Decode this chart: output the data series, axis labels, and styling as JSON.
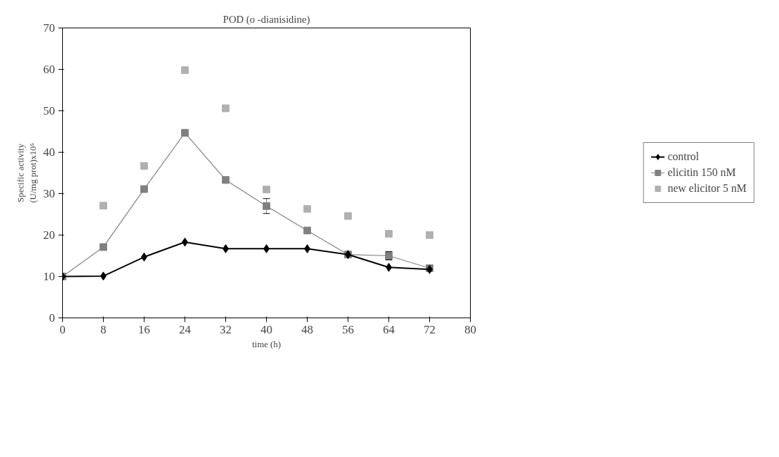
{
  "chart_data": {
    "type": "line",
    "title": "POD (o -dianisidine)",
    "xlabel": "time (h)",
    "ylabel": "Specific activity\n(U/mg prot)x10⁵",
    "x": [
      0,
      8,
      16,
      24,
      32,
      40,
      48,
      56,
      64,
      72
    ],
    "series": [
      {
        "name": "control",
        "color": "#000000",
        "marker": "diamond",
        "values": [
          10,
          10.1,
          14.7,
          18.3,
          16.7,
          16.7,
          16.7,
          15.3,
          12.2,
          11.7
        ]
      },
      {
        "name": "elicitin 150 nM",
        "color": "#808080",
        "marker": "square",
        "values": [
          10,
          17.1,
          31.1,
          44.7,
          33.3,
          27,
          21.1,
          15.3,
          15,
          12
        ],
        "errors": [
          null,
          null,
          null,
          null,
          null,
          1.8,
          null,
          null,
          1,
          null
        ]
      },
      {
        "name": "new elicitor 5 nM",
        "type": "scatter",
        "color": "#b0b0b0",
        "marker": "square",
        "values": [
          null,
          27.1,
          36.7,
          59.8,
          50.6,
          31,
          26.3,
          24.6,
          20.3,
          20
        ]
      }
    ],
    "xlim": [
      0,
      80
    ],
    "xticks": [
      0,
      8,
      16,
      24,
      32,
      40,
      48,
      56,
      64,
      72,
      80
    ],
    "ylim": [
      0,
      70
    ],
    "yticks": [
      0,
      10,
      20,
      30,
      40,
      50,
      60,
      70
    ],
    "grid": false,
    "legend": "right"
  }
}
